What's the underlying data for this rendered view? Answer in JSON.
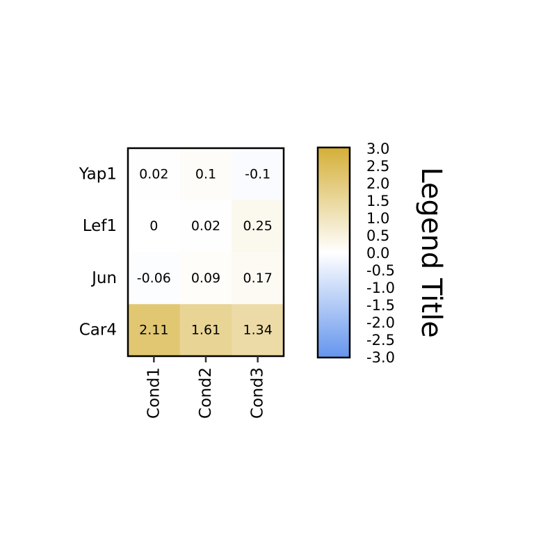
{
  "chart_data": {
    "type": "heatmap",
    "rows": [
      "Yap1",
      "Lef1",
      "Jun",
      "Car4"
    ],
    "columns": [
      "Cond1",
      "Cond2",
      "Cond3"
    ],
    "values": [
      [
        0.02,
        0.1,
        -0.1
      ],
      [
        0,
        0.02,
        0.25
      ],
      [
        -0.06,
        0.09,
        0.17
      ],
      [
        2.11,
        1.61,
        1.34
      ]
    ],
    "cell_labels": [
      [
        "0.02",
        "0.1",
        "-0.1"
      ],
      [
        "0",
        "0.02",
        "0.25"
      ],
      [
        "-0.06",
        "0.09",
        "0.17"
      ],
      [
        "2.11",
        "1.61",
        "1.34"
      ]
    ],
    "color_scale": {
      "min": -3.0,
      "mid": 0.0,
      "max": 3.0,
      "low_color": "#6495ED",
      "mid_color": "#FFFFFF",
      "high_color": "#D4AF37"
    },
    "legend": {
      "title": "Legend Title",
      "ticks": [
        "3.0",
        "2.5",
        "2.0",
        "1.5",
        "1.0",
        "0.5",
        "0.0",
        "-0.5",
        "-1.0",
        "-1.5",
        "-2.0",
        "-2.5",
        "-3.0"
      ],
      "tick_values": [
        3.0,
        2.5,
        2.0,
        1.5,
        1.0,
        0.5,
        0.0,
        -0.5,
        -1.0,
        -1.5,
        -2.0,
        -2.5,
        -3.0
      ],
      "placement": "right"
    }
  }
}
